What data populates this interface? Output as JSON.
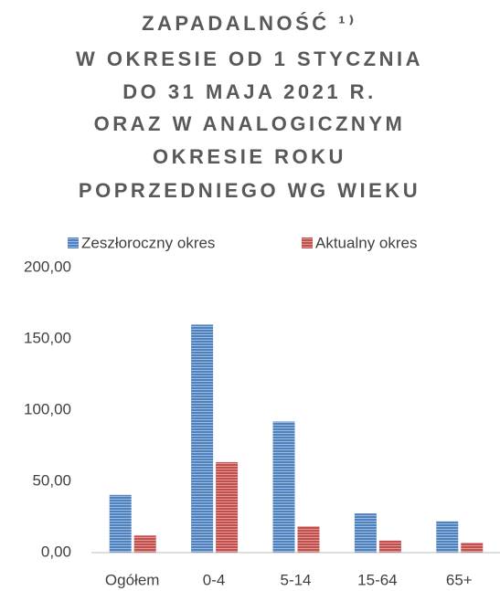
{
  "chart_data": {
    "type": "bar",
    "title": [
      "ZAPADALNOŚĆ ¹⁾",
      "W OKRESIE OD 1 STYCZNIA",
      "DO 31 MAJA 2021 R.",
      "ORAZ W ANALOGICZNYM",
      "OKRESIE ROKU",
      "POPRZEDNIEGO WG WIEKU"
    ],
    "categories": [
      "Ogółem",
      "0-4",
      "5-14",
      "15-64",
      "65+"
    ],
    "series": [
      {
        "name": "Zeszłoroczny okres",
        "color": "#4f81bd",
        "values": [
          40.5,
          160,
          92,
          27.5,
          22
        ]
      },
      {
        "name": "Aktualny okres",
        "color": "#c0504d",
        "values": [
          12,
          63.5,
          18.5,
          8.5,
          7
        ]
      }
    ],
    "ylim": [
      0,
      200
    ],
    "yticks": [
      {
        "value": 0,
        "label": "0,00"
      },
      {
        "value": 50,
        "label": "50,00"
      },
      {
        "value": 100,
        "label": "100,00"
      },
      {
        "value": 150,
        "label": "150,00"
      },
      {
        "value": 200,
        "label": "200,00"
      }
    ],
    "legend": "top",
    "grid": false
  }
}
